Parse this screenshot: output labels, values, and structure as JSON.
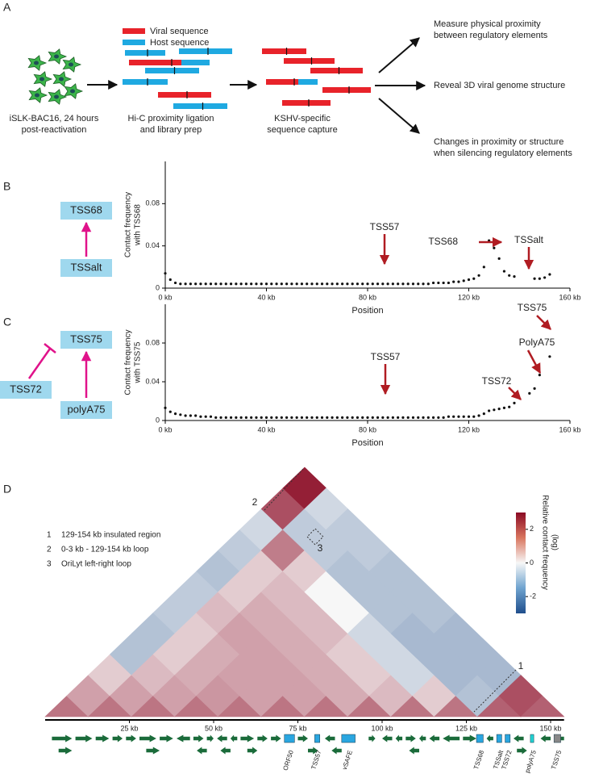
{
  "panel_labels": [
    "A",
    "B",
    "C",
    "D"
  ],
  "workflow": {
    "legend": [
      "Viral sequence",
      "Host sequence"
    ],
    "steps": [
      [
        "iSLK-BAC16, 24 hours",
        "post-reactivation"
      ],
      [
        "Hi-C proximity ligation",
        "and library prep"
      ],
      [
        "KSHV-specific",
        "sequence capture"
      ]
    ],
    "outcomes": [
      [
        "Measure physical proximity",
        "between regulatory elements"
      ],
      [
        "Reveal 3D viral genome structure"
      ],
      [
        "Changes in proximity or structure",
        "when silencing regulatory elements"
      ]
    ]
  },
  "diagrams": [
    [
      "TSS68",
      "TSSalt"
    ],
    [
      "TSS75",
      "TSS72",
      "polyA75"
    ]
  ],
  "chart_data": [
    {
      "type": "scatter",
      "xlabel": "Position",
      "ylabel": [
        "Contact frequency",
        "with TSS68"
      ],
      "xlim": [
        0,
        160
      ],
      "ylim": [
        0,
        0.12
      ],
      "xticks": [
        {
          "value": 0,
          "label": "0 kb"
        },
        {
          "value": 40,
          "label": "40 kb"
        },
        {
          "value": 80,
          "label": "80 kb"
        },
        {
          "value": 120,
          "label": "120 kb"
        },
        {
          "value": 160,
          "label": "160 kb"
        }
      ],
      "yticks": [
        0,
        0.04,
        0.08
      ],
      "color": "#111111",
      "annotations": [
        "TSS57",
        "TSS68",
        "TSSalt"
      ],
      "x": [
        0,
        2,
        4,
        6,
        8,
        10,
        12,
        14,
        16,
        18,
        20,
        22,
        24,
        26,
        28,
        30,
        32,
        34,
        36,
        38,
        40,
        42,
        44,
        46,
        48,
        50,
        52,
        54,
        56,
        58,
        60,
        62,
        64,
        66,
        68,
        70,
        72,
        74,
        76,
        78,
        80,
        82,
        84,
        86,
        88,
        90,
        92,
        94,
        96,
        98,
        100,
        102,
        104,
        106,
        108,
        110,
        112,
        114,
        116,
        118,
        120,
        122,
        124,
        126,
        128,
        130,
        132,
        134,
        136,
        138,
        140,
        142,
        144,
        146,
        148,
        150,
        152
      ],
      "values": [
        0.014,
        0.008,
        0.005,
        0.004,
        0.004,
        0.004,
        0.004,
        0.004,
        0.004,
        0.004,
        0.004,
        0.004,
        0.004,
        0.004,
        0.004,
        0.004,
        0.004,
        0.004,
        0.004,
        0.004,
        0.004,
        0.004,
        0.004,
        0.004,
        0.004,
        0.004,
        0.004,
        0.004,
        0.004,
        0.004,
        0.004,
        0.004,
        0.004,
        0.004,
        0.004,
        0.004,
        0.004,
        0.004,
        0.004,
        0.004,
        0.004,
        0.004,
        0.004,
        0.004,
        0.004,
        0.004,
        0.004,
        0.004,
        0.004,
        0.004,
        0.004,
        0.004,
        0.004,
        0.005,
        0.005,
        0.005,
        0.005,
        0.006,
        0.006,
        0.007,
        0.008,
        0.009,
        0.012,
        0.02,
        0.045,
        0.038,
        0.028,
        0.016,
        0.012,
        0.011,
        null,
        null,
        null,
        0.009,
        0.009,
        0.01,
        0.013
      ]
    },
    {
      "type": "scatter",
      "xlabel": "Position",
      "ylabel": [
        "Contact frequency",
        "with TSS75"
      ],
      "xlim": [
        0,
        160
      ],
      "ylim": [
        0,
        0.12
      ],
      "xticks": [
        {
          "value": 0,
          "label": "0 kb"
        },
        {
          "value": 40,
          "label": "40 kb"
        },
        {
          "value": 80,
          "label": "80 kb"
        },
        {
          "value": 120,
          "label": "120 kb"
        },
        {
          "value": 160,
          "label": "160 kb"
        }
      ],
      "yticks": [
        0,
        0.04,
        0.08
      ],
      "color": "#111111",
      "annotations": [
        "TSS57",
        "TSS72",
        "PolyA75",
        "TSS75"
      ],
      "x": [
        0,
        2,
        4,
        6,
        8,
        10,
        12,
        14,
        16,
        18,
        20,
        22,
        24,
        26,
        28,
        30,
        32,
        34,
        36,
        38,
        40,
        42,
        44,
        46,
        48,
        50,
        52,
        54,
        56,
        58,
        60,
        62,
        64,
        66,
        68,
        70,
        72,
        74,
        76,
        78,
        80,
        82,
        84,
        86,
        88,
        90,
        92,
        94,
        96,
        98,
        100,
        102,
        104,
        106,
        108,
        110,
        112,
        114,
        116,
        118,
        120,
        122,
        124,
        126,
        128,
        130,
        132,
        134,
        136,
        138,
        140,
        142,
        144,
        146,
        148,
        150,
        152
      ],
      "values": [
        0.013,
        0.009,
        0.007,
        0.006,
        0.005,
        0.005,
        0.005,
        0.004,
        0.004,
        0.004,
        0.003,
        0.003,
        0.003,
        0.003,
        0.003,
        0.003,
        0.003,
        0.003,
        0.003,
        0.003,
        0.003,
        0.003,
        0.003,
        0.003,
        0.003,
        0.003,
        0.003,
        0.003,
        0.003,
        0.003,
        0.003,
        0.003,
        0.003,
        0.003,
        0.003,
        0.003,
        0.003,
        0.003,
        0.003,
        0.003,
        0.003,
        0.003,
        0.003,
        0.003,
        0.003,
        0.003,
        0.003,
        0.003,
        0.003,
        0.003,
        0.003,
        0.003,
        0.003,
        0.003,
        0.003,
        0.003,
        0.004,
        0.004,
        0.004,
        0.004,
        0.004,
        0.004,
        0.005,
        0.007,
        0.01,
        0.011,
        0.012,
        0.013,
        0.014,
        0.018,
        null,
        null,
        0.028,
        0.033,
        0.047,
        null,
        0.066
      ]
    },
    {
      "type": "heatmap",
      "xlim": [
        0,
        154
      ],
      "zlim": [
        -3,
        3
      ],
      "zticks": [
        -2,
        0,
        2
      ],
      "colorbar_label": [
        "Relative contact frequency",
        "(log)"
      ],
      "legend": [
        {
          "key": "1",
          "text": "129-154 kb insulated region"
        },
        {
          "key": "2",
          "text": "0-3 kb - 129-154 kb loop"
        },
        {
          "key": "3",
          "text": "OriLyt left-right loop"
        }
      ],
      "rows": [
        [
          0.9,
          0.4,
          0.1,
          -0.3,
          -0.3,
          -0.2,
          -0.2,
          -0.3,
          -0.2,
          -0.1,
          1.5,
          2.5
        ],
        [
          0.9,
          0.4,
          0.2,
          0.1,
          0.1,
          0.2,
          0.1,
          0.1,
          0.8,
          -0.2,
          -0.1
        ],
        [
          0.9,
          0.4,
          0.3,
          0.3,
          0.4,
          0.3,
          0.2,
          0.1,
          -0.2,
          -0.2
        ],
        [
          0.9,
          0.5,
          0.4,
          0.4,
          0.3,
          0.2,
          0.0,
          -0.3,
          -0.2
        ],
        [
          0.9,
          0.4,
          0.4,
          0.3,
          0.2,
          0.0,
          -0.3,
          -0.3
        ],
        [
          0.9,
          0.4,
          0.3,
          0.1,
          -0.1,
          -0.3,
          -0.3
        ],
        [
          0.9,
          0.3,
          0.1,
          -0.1,
          -0.4,
          -0.3
        ],
        [
          0.9,
          0.2,
          -0.1,
          -0.4,
          -0.4
        ],
        [
          0.9,
          0.1,
          -0.4,
          -0.4
        ],
        [
          0.9,
          -0.3,
          -0.4
        ],
        [
          1.2,
          1.5
        ],
        [
          1.2
        ]
      ],
      "xticks": [
        {
          "value": 25,
          "label": "25 kb"
        },
        {
          "value": 50,
          "label": "50 kb"
        },
        {
          "value": 75,
          "label": "75 kb"
        },
        {
          "value": 100,
          "label": "100 kb"
        },
        {
          "value": 125,
          "label": "125 kb"
        },
        {
          "value": 150,
          "label": "150 kb"
        }
      ],
      "genes": [
        [
          2,
          8,
          1,
          0
        ],
        [
          9,
          14,
          1,
          0
        ],
        [
          15,
          19,
          1,
          0
        ],
        [
          20,
          23,
          1,
          0
        ],
        [
          24,
          27,
          1,
          0
        ],
        [
          28,
          33,
          1,
          0
        ],
        [
          34,
          38,
          1,
          0
        ],
        [
          39,
          43,
          -1,
          0
        ],
        [
          44,
          47,
          1,
          0
        ],
        [
          48,
          50,
          1,
          0
        ],
        [
          51,
          54,
          -1,
          0
        ],
        [
          55,
          57,
          -1,
          0
        ],
        [
          58,
          62,
          1,
          0
        ],
        [
          63,
          66,
          1,
          0
        ],
        [
          67,
          70,
          1,
          0
        ],
        [
          75,
          78,
          1,
          0
        ],
        [
          83,
          86,
          -1,
          0
        ],
        [
          96,
          98,
          1,
          0
        ],
        [
          100,
          103,
          -1,
          0
        ],
        [
          104,
          106,
          -1,
          0
        ],
        [
          107,
          110,
          1,
          0
        ],
        [
          111,
          113,
          -1,
          0
        ],
        [
          114,
          117,
          -1,
          0
        ],
        [
          118,
          123,
          -1,
          0
        ],
        [
          124,
          128,
          1,
          0
        ],
        [
          131,
          133,
          -1,
          0
        ],
        [
          139,
          142,
          -1,
          0
        ],
        [
          147,
          150,
          -1,
          0
        ],
        [
          151,
          154,
          -1,
          0
        ],
        [
          4,
          8,
          1,
          1
        ],
        [
          30,
          34,
          1,
          1
        ],
        [
          45,
          48,
          -1,
          1
        ],
        [
          52,
          55,
          -1,
          1
        ],
        [
          60,
          63,
          1,
          1
        ],
        [
          78,
          81,
          1,
          1
        ],
        [
          85,
          88,
          -1,
          1
        ],
        [
          108,
          111,
          -1,
          1
        ],
        [
          140,
          143,
          1,
          1
        ]
      ],
      "features": [
        {
          "label": "ORF50",
          "start": 71,
          "end": 74
        },
        {
          "label": "TSS57",
          "start": 80,
          "end": 81.5
        },
        {
          "label": "vSAFE",
          "start": 88,
          "end": 92
        },
        {
          "label": "TSS68",
          "start": 128,
          "end": 130
        },
        {
          "label": "TSSalt",
          "start": 134,
          "end": 135.5
        },
        {
          "label": "TSS72",
          "start": 136.5,
          "end": 138
        },
        {
          "label": "polyA75",
          "start": 144,
          "end": 145
        },
        {
          "label": "TSS75",
          "start": 151,
          "end": 153
        }
      ]
    }
  ]
}
